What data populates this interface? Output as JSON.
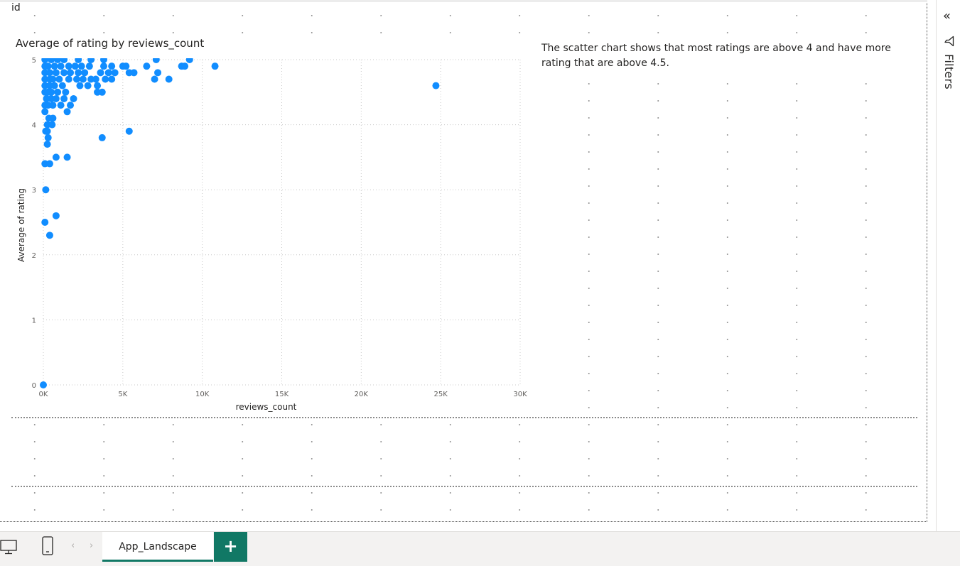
{
  "canvas": {
    "visual_id_label": "id"
  },
  "chart": {
    "title": "Average of rating by reviews_count",
    "textbox": "The scatter chart shows that most ratings are above 4 and have more rating that are above 4.5."
  },
  "chart_data": {
    "type": "scatter",
    "title": "Average of rating by reviews_count",
    "xlabel": "reviews_count",
    "ylabel": "Average of rating",
    "xlim": [
      0,
      30000
    ],
    "ylim": [
      0,
      5
    ],
    "x_ticks": [
      "0K",
      "5K",
      "10K",
      "15K",
      "20K",
      "25K",
      "30K"
    ],
    "y_ticks": [
      "0",
      "1",
      "2",
      "3",
      "4",
      "5"
    ],
    "grid": true,
    "color": "#118DFF",
    "points": [
      [
        0,
        0
      ],
      [
        100,
        2.5
      ],
      [
        400,
        2.3
      ],
      [
        800,
        2.6
      ],
      [
        150,
        3.0
      ],
      [
        100,
        3.4
      ],
      [
        400,
        3.4
      ],
      [
        800,
        3.5
      ],
      [
        1500,
        3.5
      ],
      [
        250,
        3.7
      ],
      [
        300,
        3.8
      ],
      [
        150,
        3.9
      ],
      [
        250,
        3.9
      ],
      [
        3700,
        3.8
      ],
      [
        5400,
        3.9
      ],
      [
        250,
        4.0
      ],
      [
        550,
        4.0
      ],
      [
        350,
        4.1
      ],
      [
        600,
        4.1
      ],
      [
        100,
        4.2
      ],
      [
        1500,
        4.2
      ],
      [
        100,
        4.3
      ],
      [
        300,
        4.3
      ],
      [
        600,
        4.3
      ],
      [
        1100,
        4.3
      ],
      [
        1700,
        4.3
      ],
      [
        200,
        4.4
      ],
      [
        500,
        4.4
      ],
      [
        800,
        4.4
      ],
      [
        1300,
        4.4
      ],
      [
        1900,
        4.4
      ],
      [
        100,
        4.5
      ],
      [
        300,
        4.5
      ],
      [
        500,
        4.5
      ],
      [
        900,
        4.5
      ],
      [
        1400,
        4.5
      ],
      [
        3400,
        4.5
      ],
      [
        3700,
        4.5
      ],
      [
        100,
        4.6
      ],
      [
        400,
        4.6
      ],
      [
        700,
        4.6
      ],
      [
        1200,
        4.6
      ],
      [
        2300,
        4.6
      ],
      [
        2800,
        4.6
      ],
      [
        3400,
        4.6
      ],
      [
        24700,
        4.6
      ],
      [
        100,
        4.7
      ],
      [
        400,
        4.7
      ],
      [
        600,
        4.7
      ],
      [
        1000,
        4.7
      ],
      [
        1600,
        4.7
      ],
      [
        2100,
        4.7
      ],
      [
        2500,
        4.7
      ],
      [
        3000,
        4.7
      ],
      [
        3300,
        4.7
      ],
      [
        3900,
        4.7
      ],
      [
        4300,
        4.7
      ],
      [
        7000,
        4.7
      ],
      [
        7900,
        4.7
      ],
      [
        100,
        4.8
      ],
      [
        400,
        4.8
      ],
      [
        800,
        4.8
      ],
      [
        1300,
        4.8
      ],
      [
        1700,
        4.8
      ],
      [
        2200,
        4.8
      ],
      [
        2600,
        4.8
      ],
      [
        3600,
        4.8
      ],
      [
        4100,
        4.8
      ],
      [
        4500,
        4.8
      ],
      [
        5400,
        4.8
      ],
      [
        5700,
        4.8
      ],
      [
        7200,
        4.8
      ],
      [
        100,
        4.9
      ],
      [
        300,
        4.9
      ],
      [
        700,
        4.9
      ],
      [
        1100,
        4.9
      ],
      [
        1600,
        4.9
      ],
      [
        2000,
        4.9
      ],
      [
        2400,
        4.9
      ],
      [
        2900,
        4.9
      ],
      [
        3800,
        4.9
      ],
      [
        4300,
        4.9
      ],
      [
        5000,
        4.9
      ],
      [
        5200,
        4.9
      ],
      [
        6500,
        4.9
      ],
      [
        8700,
        4.9
      ],
      [
        8900,
        4.9
      ],
      [
        10800,
        4.9
      ],
      [
        100,
        5.0
      ],
      [
        500,
        5.0
      ],
      [
        900,
        5.0
      ],
      [
        1300,
        5.0
      ],
      [
        2200,
        5.0
      ],
      [
        3000,
        5.0
      ],
      [
        3800,
        5.0
      ],
      [
        7100,
        5.0
      ],
      [
        9200,
        5.0
      ]
    ]
  },
  "filters_pane": {
    "label": "Filters",
    "collapse_glyph": "«"
  },
  "bottom_bar": {
    "page_tab_label": "App_Landscape",
    "add_page_glyph": "+",
    "prev_glyph": "‹",
    "next_glyph": "›",
    "accent_color": "#117865"
  }
}
